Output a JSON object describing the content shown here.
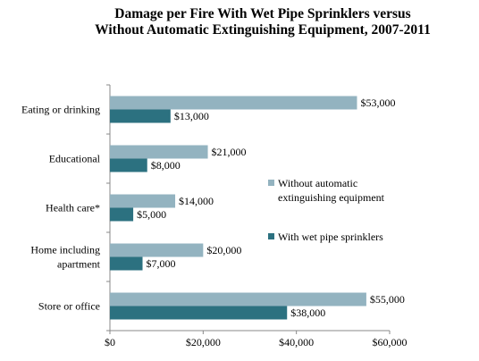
{
  "chart_data": {
    "type": "bar",
    "orientation": "horizontal",
    "title_lines": [
      "Damage per Fire With Wet Pipe Sprinklers versus",
      "Without Automatic Extinguishing Equipment, 2007-2011"
    ],
    "categories": [
      [
        "Eating or drinking"
      ],
      [
        "Educational"
      ],
      [
        "Health care*"
      ],
      [
        "Home including",
        "apartment"
      ],
      [
        "Store or office"
      ]
    ],
    "series": [
      {
        "name_lines": [
          "Without automatic",
          "extinguishing equipment"
        ],
        "color": "#93b3c0",
        "values": [
          53000,
          21000,
          14000,
          20000,
          55000
        ],
        "labels": [
          "$53,000",
          "$21,000",
          "$14,000",
          "$20,000",
          "$55,000"
        ]
      },
      {
        "name_lines": [
          "With wet pipe sprinklers"
        ],
        "color": "#2c7180",
        "values": [
          13000,
          8000,
          5000,
          7000,
          38000
        ],
        "labels": [
          "$13,000",
          "$8,000",
          "$5,000",
          "$7,000",
          "$38,000"
        ]
      }
    ],
    "xlim": [
      0,
      60000
    ],
    "xticks": [
      0,
      20000,
      40000,
      60000
    ],
    "xtick_labels": [
      "$0",
      "$20,000",
      "$40,000",
      "$60,000"
    ],
    "grid": false,
    "legend_position": "right"
  }
}
